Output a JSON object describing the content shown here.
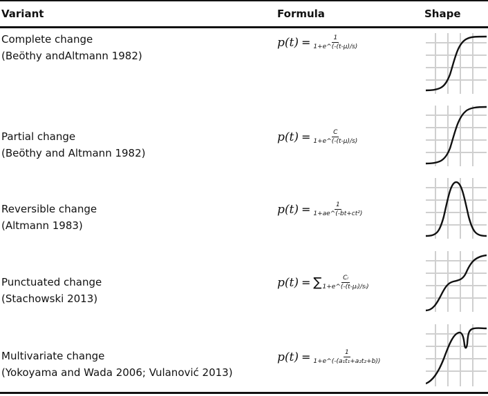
{
  "headers": {
    "variant": "Variant",
    "formula": "Formula",
    "shape": "Shape"
  },
  "rows": [
    {
      "name": "Complete change",
      "citation": "(Beöthy andAltmann 1982)",
      "formula": {
        "lhs": "p(t)",
        "eq": "=",
        "sum": "",
        "num": "1",
        "den": "1+e^(-(t-μ)/s)"
      },
      "shape": "complete-change-curve-icon"
    },
    {
      "name": "Partial change",
      "citation": "(Beöthy and Altmann 1982)",
      "formula": {
        "lhs": "p(t)",
        "eq": "=",
        "sum": "",
        "num": "C",
        "den": "1+e^(-(t-μ)/s)"
      },
      "shape": "partial-change-curve-icon"
    },
    {
      "name": "Reversible change",
      "citation": "(Altmann 1983)",
      "formula": {
        "lhs": "p(t)",
        "eq": "=",
        "sum": "",
        "num": "1",
        "den": "1+ae^(-bt+ct²)"
      },
      "shape": "reversible-change-curve-icon"
    },
    {
      "name": "Punctuated change",
      "citation": "(Stachowski 2013)",
      "formula": {
        "lhs": "p(t)",
        "eq": "=",
        "sum": "∑",
        "num": "Cᵢ",
        "den": "1+e^(-(t-μᵢ)/sᵢ)"
      },
      "shape": "punctuated-change-curve-icon"
    },
    {
      "name": "Multivariate change",
      "citation": "(Yokoyama and Wada 2006; Vulanović 2013)",
      "formula": {
        "lhs": "p(t)",
        "eq": "=",
        "sum": "",
        "num": "1",
        "den": "1+e^(-(a₁t₁+a₂t₂+b))"
      },
      "shape": "multivariate-change-curve-icon"
    }
  ]
}
